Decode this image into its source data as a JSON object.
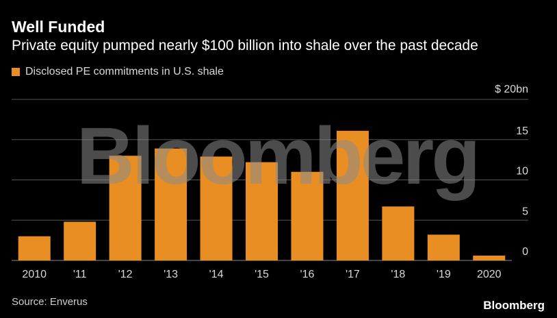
{
  "title": "Well Funded",
  "subtitle": "Private equity pumped nearly $100 billion into shale over the past decade",
  "legend_label": "Disclosed PE commitments in U.S. shale",
  "source": "Source: Enverus",
  "brand": "Bloomberg",
  "watermark": "Bloomberg",
  "colors": {
    "bar": "#E88E22",
    "background": "#000000",
    "grid": "#555555",
    "watermark": "#8a8a8a"
  },
  "chart_data": {
    "type": "bar",
    "categories": [
      "2010",
      "'11",
      "'12",
      "'13",
      "'14",
      "'15",
      "'16",
      "'17",
      "'18",
      "'19",
      "2020"
    ],
    "values": [
      3.0,
      4.8,
      13.0,
      13.9,
      12.9,
      12.2,
      11.0,
      16.1,
      6.7,
      3.2,
      0.6
    ],
    "ylim": [
      0,
      20
    ],
    "yticks": [
      0,
      5,
      10,
      15,
      20
    ],
    "ytick_labels": [
      "0",
      "5",
      "10",
      "15",
      "$ 20bn"
    ],
    "y_axis_side": "right",
    "grid": true,
    "legend": "top-left"
  }
}
